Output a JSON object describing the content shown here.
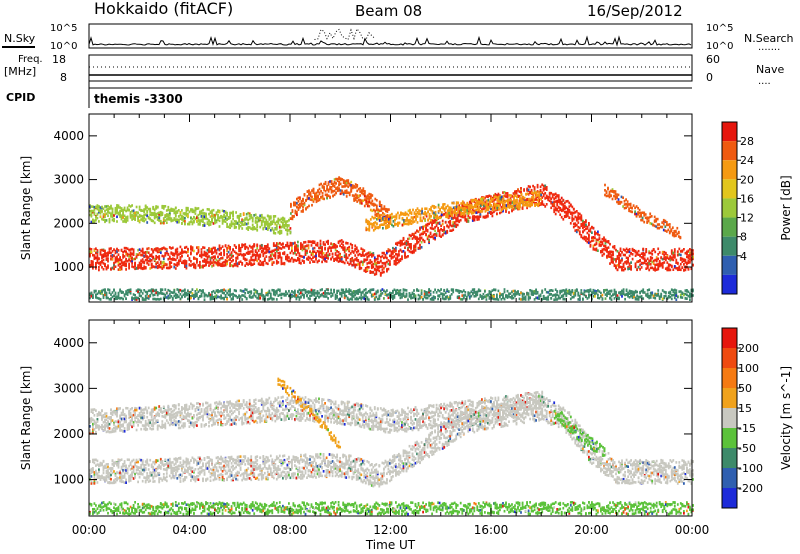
{
  "header": {
    "title": "Hokkaido (fitACF)",
    "beam": "Beam 08",
    "date": "16/Sep/2012"
  },
  "top_panels": {
    "nsky": {
      "left_label": "N.Sky",
      "ticks": [
        "10^5",
        "10^0"
      ],
      "right_ticks": [
        "10^5",
        "10^0"
      ],
      "right_label": "N.Search",
      "right_legend": "......."
    },
    "freq": {
      "left_label_1": "Freq.",
      "left_label_2": "[MHz]",
      "ticks": [
        "18",
        "8"
      ],
      "right_ticks": [
        "60",
        "0"
      ],
      "right_label": "Nave",
      "right_legend": "...."
    },
    "cpid": {
      "label": "CPID",
      "program": "themis -3300"
    }
  },
  "chart_data": [
    {
      "type": "heatmap",
      "name": "power-panel",
      "ylabel": "Slant Range [km]",
      "ylim": [
        200,
        4500
      ],
      "yticks": [
        1000,
        2000,
        3000,
        4000
      ],
      "x": [
        "00:00",
        "04:00",
        "08:00",
        "12:00",
        "16:00",
        "20:00",
        "00:00"
      ],
      "xlim_hours": [
        0,
        24
      ],
      "colorbar": {
        "label": "Power [dB]",
        "ticks": [
          "4",
          "8",
          "12",
          "16",
          "20",
          "24",
          "28"
        ],
        "colors": [
          "#1d2bd9",
          "#2f5fb0",
          "#3d8a6a",
          "#5aa84a",
          "#9cc93a",
          "#e2c61c",
          "#f59a12",
          "#ef5a10",
          "#e6160d"
        ]
      },
      "bands": [
        {
          "points": [
            [
              0,
              1200
            ],
            [
              4,
              1250
            ],
            [
              8,
              1350
            ],
            [
              10,
              1400
            ],
            [
              11.5,
              1050
            ],
            [
              13,
              1650
            ],
            [
              15,
              2300
            ],
            [
              18,
              2700
            ],
            [
              19,
              2300
            ],
            [
              20,
              1700
            ],
            [
              21,
              1200
            ],
            [
              24,
              1200
            ]
          ],
          "width": 380,
          "color": "#ef2a10"
        },
        {
          "points": [
            [
              0,
              2250
            ],
            [
              2,
              2250
            ],
            [
              4,
              2200
            ],
            [
              6,
              2100
            ],
            [
              8,
              1950
            ]
          ],
          "width": 300,
          "color": "#9cc93a"
        },
        {
          "points": [
            [
              8,
              2300
            ],
            [
              9,
              2700
            ],
            [
              10,
              2900
            ],
            [
              11,
              2600
            ],
            [
              12,
              2100
            ]
          ],
          "width": 300,
          "color": "#ef5a10"
        },
        {
          "points": [
            [
              11,
              2000
            ],
            [
              13,
              2200
            ],
            [
              15,
              2400
            ],
            [
              18,
              2600
            ]
          ],
          "width": 250,
          "color": "#f59a12"
        },
        {
          "points": [
            [
              20.5,
              2800
            ],
            [
              22,
              2200
            ],
            [
              23.5,
              1800
            ]
          ],
          "width": 200,
          "color": "#ef5a10"
        },
        {
          "points": [
            [
              0,
              400
            ],
            [
              24,
              400
            ]
          ],
          "width": 180,
          "color": "#3d8a6a"
        }
      ]
    },
    {
      "type": "heatmap",
      "name": "velocity-panel",
      "ylabel": "Slant Range [km]",
      "ylim": [
        200,
        4500
      ],
      "yticks": [
        1000,
        2000,
        3000,
        4000
      ],
      "x": [
        "00:00",
        "04:00",
        "08:00",
        "12:00",
        "16:00",
        "20:00",
        "00:00"
      ],
      "xlim_hours": [
        0,
        24
      ],
      "xlabel": "Time UT",
      "colorbar": {
        "label": "Velocity [m s^-1]",
        "ticks": [
          "200",
          "100",
          "50",
          "15",
          "-15",
          "-50",
          "-100",
          "-200"
        ],
        "colors": [
          "#1d2bd9",
          "#2f5fb0",
          "#3d8a6a",
          "#5bc23a",
          "#c8c8c0",
          "#f0a21c",
          "#f57a12",
          "#ef4a10",
          "#e6160d"
        ]
      },
      "bands": [
        {
          "points": [
            [
              0,
              1200
            ],
            [
              4,
              1250
            ],
            [
              8,
              1300
            ],
            [
              10,
              1350
            ],
            [
              11.5,
              1100
            ],
            [
              13,
              1600
            ],
            [
              15,
              2300
            ],
            [
              18,
              2600
            ],
            [
              19,
              2300
            ],
            [
              20,
              1600
            ],
            [
              21,
              1200
            ],
            [
              24,
              1200
            ]
          ],
          "width": 400,
          "color": "#c8c8c0"
        },
        {
          "points": [
            [
              0,
              2300
            ],
            [
              3,
              2400
            ],
            [
              6,
              2500
            ],
            [
              8,
              2600
            ],
            [
              10,
              2500
            ],
            [
              12,
              2300
            ],
            [
              15,
              2500
            ],
            [
              18,
              2700
            ]
          ],
          "width": 400,
          "color": "#c8c8c0"
        },
        {
          "points": [
            [
              7.5,
              3200
            ],
            [
              9,
              2400
            ],
            [
              10,
              1700
            ]
          ],
          "width": 150,
          "color": "#f0a21c"
        },
        {
          "points": [
            [
              18.5,
              2500
            ],
            [
              19.5,
              2000
            ],
            [
              20.5,
              1600
            ]
          ],
          "width": 200,
          "color": "#5bc23a"
        },
        {
          "points": [
            [
              0,
              400
            ],
            [
              24,
              400
            ]
          ],
          "width": 200,
          "color": "#5bc23a"
        }
      ]
    }
  ]
}
